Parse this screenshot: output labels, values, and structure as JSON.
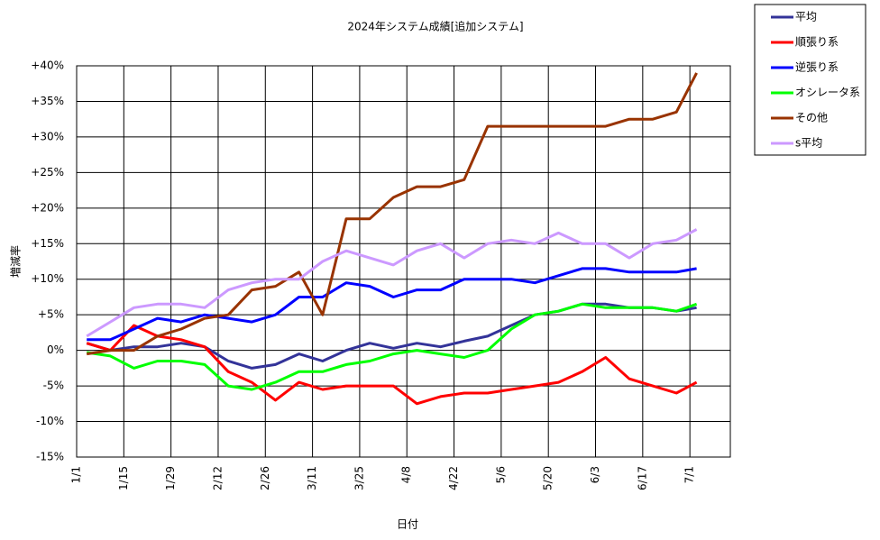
{
  "chart_data": {
    "type": "line",
    "title": "2024年システム成績[追加システム]",
    "x_label": "日付",
    "y_label": "増減率",
    "x": [
      "1/4",
      "1/11",
      "1/18",
      "1/25",
      "2/1",
      "2/8",
      "2/15",
      "2/22",
      "2/29",
      "3/7",
      "3/14",
      "3/21",
      "3/28",
      "4/4",
      "4/11",
      "4/18",
      "4/25",
      "5/2",
      "5/9",
      "5/16",
      "5/23",
      "5/30",
      "6/6",
      "6/13",
      "6/20",
      "6/27",
      "7/3"
    ],
    "xlim": [
      "1/1",
      "7/13"
    ],
    "xticks": [
      "1/1",
      "1/15",
      "1/29",
      "2/12",
      "2/26",
      "3/11",
      "3/25",
      "4/8",
      "4/22",
      "5/6",
      "5/20",
      "6/3",
      "6/17",
      "7/1"
    ],
    "ylim": [
      -15,
      40
    ],
    "yticks": [
      {
        "value": -15,
        "label": "-15%"
      },
      {
        "value": -10,
        "label": "-10%"
      },
      {
        "value": -5,
        "label": "-5%"
      },
      {
        "value": 0,
        "label": "0%"
      },
      {
        "value": 5,
        "label": "+5%"
      },
      {
        "value": 10,
        "label": "+10%"
      },
      {
        "value": 15,
        "label": "+15%"
      },
      {
        "value": 20,
        "label": "+20%"
      },
      {
        "value": 25,
        "label": "+25%"
      },
      {
        "value": 30,
        "label": "+30%"
      },
      {
        "value": 35,
        "label": "+35%"
      },
      {
        "value": 40,
        "label": "+40%"
      }
    ],
    "grid": true,
    "legend": "right",
    "series": [
      {
        "name": "平均",
        "color": "#333399",
        "values": [
          1,
          0,
          0.5,
          0.5,
          1,
          0.5,
          -1.5,
          -2.5,
          -2,
          -0.5,
          -1.5,
          0,
          1,
          0.3,
          1,
          0.5,
          1.3,
          2,
          3.5,
          5,
          5.5,
          6.5,
          6.5,
          6,
          6,
          5.5,
          6
        ]
      },
      {
        "name": "順張り系",
        "color": "#ff0000",
        "values": [
          1,
          0,
          3.5,
          2,
          1.5,
          0.5,
          -3,
          -4.5,
          -7,
          -4.5,
          -5.5,
          -5,
          -5,
          -5,
          -7.5,
          -6.5,
          -6,
          -6,
          -5.5,
          -5,
          -4.5,
          -3,
          -1,
          -4,
          -5,
          -6,
          -4.5
        ]
      },
      {
        "name": "逆張り系",
        "color": "#0000ff",
        "values": [
          1.5,
          1.5,
          3,
          4.5,
          4,
          5,
          4.5,
          4,
          5,
          7.5,
          7.5,
          9.5,
          9,
          7.5,
          8.5,
          8.5,
          10,
          10,
          10,
          9.5,
          10.5,
          11.5,
          11.5,
          11,
          11,
          11,
          11.5
        ]
      },
      {
        "name": "オシレータ系",
        "color": "#00ff00",
        "values": [
          -0.3,
          -0.8,
          -2.5,
          -1.5,
          -1.5,
          -2,
          -5,
          -5.5,
          -4.5,
          -3,
          -3,
          -2,
          -1.5,
          -0.5,
          0,
          -0.5,
          -1,
          0,
          3,
          5,
          5.5,
          6.5,
          6,
          6,
          6,
          5.5,
          6.5
        ]
      },
      {
        "name": "その他",
        "color": "#993300",
        "values": [
          -0.5,
          0,
          0,
          2,
          3,
          4.5,
          5,
          8.5,
          9,
          11,
          5,
          18.5,
          18.5,
          21.5,
          23,
          23,
          24,
          31.5,
          31.5,
          31.5,
          31.5,
          31.5,
          31.5,
          32.5,
          32.5,
          33.5,
          39
        ]
      },
      {
        "name": "s平均",
        "color": "#cc99ff",
        "values": [
          2,
          4,
          6,
          6.5,
          6.5,
          6,
          8.5,
          9.5,
          10,
          10,
          12.5,
          14,
          13,
          12,
          14,
          15,
          13,
          15,
          15.5,
          15,
          16.5,
          15,
          15,
          13,
          15,
          15.5,
          17
        ]
      }
    ]
  }
}
